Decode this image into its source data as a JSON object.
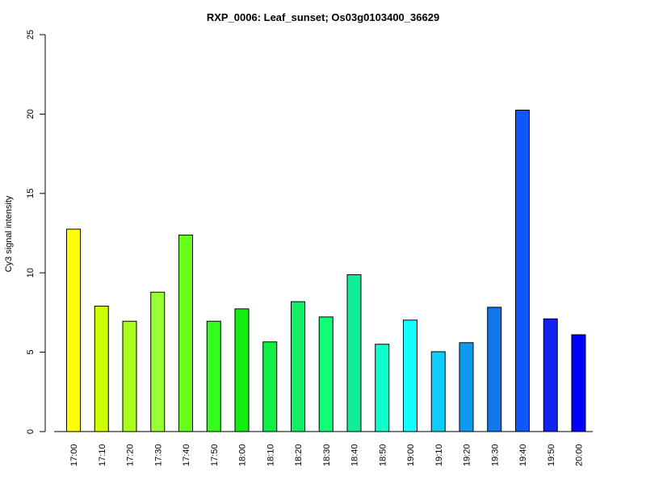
{
  "chart_data": {
    "type": "bar",
    "title": "RXP_0006: Leaf_sunset; Os03g0103400_36629",
    "xlabel": "",
    "ylabel": "Cy3 signal intensity",
    "ylim": [
      0,
      25
    ],
    "yticks": [
      0,
      5,
      10,
      15,
      20,
      25
    ],
    "categories": [
      "17:00",
      "17:10",
      "17:20",
      "17:30",
      "17:40",
      "17:50",
      "18:00",
      "18:10",
      "18:20",
      "18:30",
      "18:40",
      "18:50",
      "19:00",
      "19:10",
      "19:20",
      "19:30",
      "19:40",
      "19:50",
      "20:00"
    ],
    "values": [
      12.75,
      7.9,
      6.95,
      8.78,
      12.38,
      6.95,
      7.73,
      5.65,
      8.18,
      7.22,
      9.88,
      5.5,
      7.02,
      5.03,
      5.6,
      7.83,
      20.25,
      7.1,
      6.1
    ],
    "colors": [
      "#FFFF00",
      "#CCFF00",
      "#AAFF1A",
      "#99FF33",
      "#66FF1A",
      "#33FF1A",
      "#11EE11",
      "#11EE44",
      "#11EE66",
      "#11FF77",
      "#11EE99",
      "#11FFCC",
      "#11FFFF",
      "#11CCFF",
      "#1199EE",
      "#1177EE",
      "#1155FF",
      "#1122EE",
      "#0000FF"
    ],
    "grid": false,
    "legend": "none"
  }
}
